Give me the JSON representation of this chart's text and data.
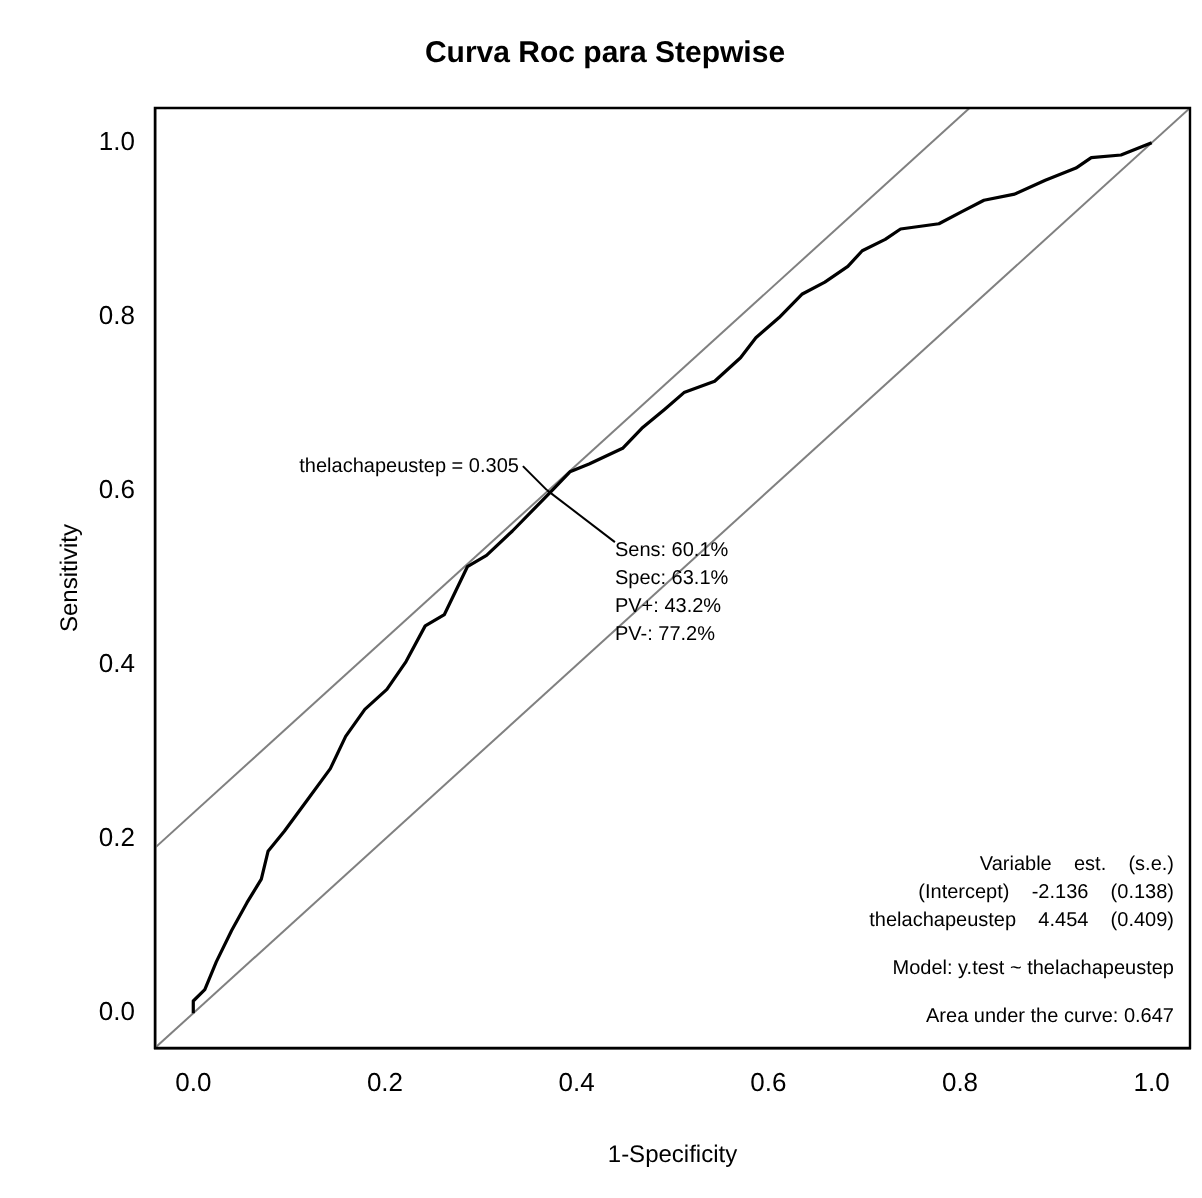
{
  "chart_data": {
    "type": "line",
    "title": "Curva Roc para Stepwise",
    "xlabel": "1-Specificity",
    "ylabel": "Sensitivity",
    "xlim": [
      -0.04,
      1.04
    ],
    "ylim": [
      -0.04,
      1.04
    ],
    "xticks": [
      {
        "value": 0,
        "label": "0.0"
      },
      0.2,
      0.4,
      0.6,
      0.8,
      {
        "value": 1,
        "label": "1.0"
      }
    ],
    "yticks": [
      {
        "value": 0,
        "label": "0.0"
      },
      0.2,
      0.4,
      0.6,
      0.8,
      {
        "value": 1,
        "label": "1.0"
      }
    ],
    "grid": false,
    "legend": false,
    "marker": "none",
    "line_style": "solid",
    "series": [
      {
        "color": "#000000",
        "x": [
          0,
          0,
          0.012,
          0.024,
          0.04,
          0.056,
          0.071,
          0.078,
          0.095,
          0.119,
          0.143,
          0.159,
          0.179,
          0.202,
          0.222,
          0.242,
          0.262,
          0.286,
          0.306,
          0.333,
          0.373,
          0.393,
          0.413,
          0.448,
          0.468,
          0.492,
          0.512,
          0.544,
          0.571,
          0.587,
          0.611,
          0.635,
          0.659,
          0.683,
          0.698,
          0.722,
          0.738,
          0.778,
          0.802,
          0.825,
          0.857,
          0.889,
          0.921,
          0.937,
          0.968,
          1
        ],
        "values": [
          0,
          0.014,
          0.027,
          0.059,
          0.095,
          0.127,
          0.154,
          0.186,
          0.209,
          0.245,
          0.281,
          0.318,
          0.349,
          0.372,
          0.404,
          0.445,
          0.458,
          0.513,
          0.526,
          0.554,
          0.599,
          0.622,
          0.631,
          0.649,
          0.672,
          0.694,
          0.713,
          0.726,
          0.753,
          0.776,
          0.799,
          0.826,
          0.84,
          0.858,
          0.876,
          0.889,
          0.901,
          0.907,
          0.921,
          0.934,
          0.941,
          0.957,
          0.971,
          0.983,
          0.986,
          1
        ]
      },
      {
        "color": "#808080",
        "x": [
          -0.04,
          1.04
        ],
        "values": [
          -0.04,
          1.04
        ]
      },
      {
        "color": "#808080",
        "x": [
          -0.04,
          0.81
        ],
        "values": [
          0.19,
          1.04
        ]
      }
    ],
    "annotations": [
      {
        "text": "thelachapeustep = 0.305",
        "x": 0.369,
        "y": 0.601
      },
      {
        "text": "Sens: 60.1%\nSpec: 63.1%\nPV+: 43.2%\nPV-: 77.2%",
        "x": 0.369,
        "y": 0.601
      },
      "Variable    est.    (s.e.)",
      "(Intercept)    -2.136    (0.138)",
      "thelachapeustep    4.454    (0.409)",
      "Model: y.test ~ thelachapeustep",
      "Area under the curve: 0.647"
    ]
  }
}
